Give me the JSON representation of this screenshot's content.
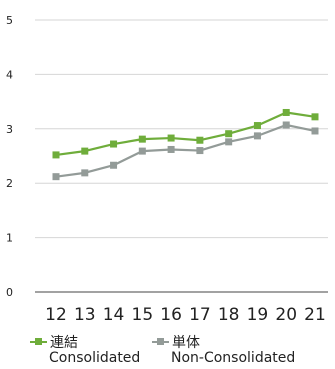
{
  "chart_data": {
    "type": "line",
    "x": [
      "12",
      "13",
      "14",
      "15",
      "16",
      "17",
      "18",
      "19",
      "20",
      "21"
    ],
    "ylim": [
      0,
      5
    ],
    "yticks": [
      "0",
      "1",
      "2",
      "3",
      "4",
      "5"
    ],
    "grid": true,
    "legend_position": "bottom",
    "series": [
      {
        "name": "連結",
        "name_en": "Consolidated",
        "color": "#6fad3b",
        "values": [
          2.52,
          2.59,
          2.72,
          2.81,
          2.83,
          2.79,
          2.91,
          3.06,
          3.3,
          3.22
        ]
      },
      {
        "name": "単体",
        "name_en": "Non-Consolidated",
        "color": "#939b98",
        "values": [
          2.12,
          2.19,
          2.33,
          2.59,
          2.62,
          2.6,
          2.76,
          2.87,
          3.07,
          2.96
        ]
      }
    ]
  }
}
